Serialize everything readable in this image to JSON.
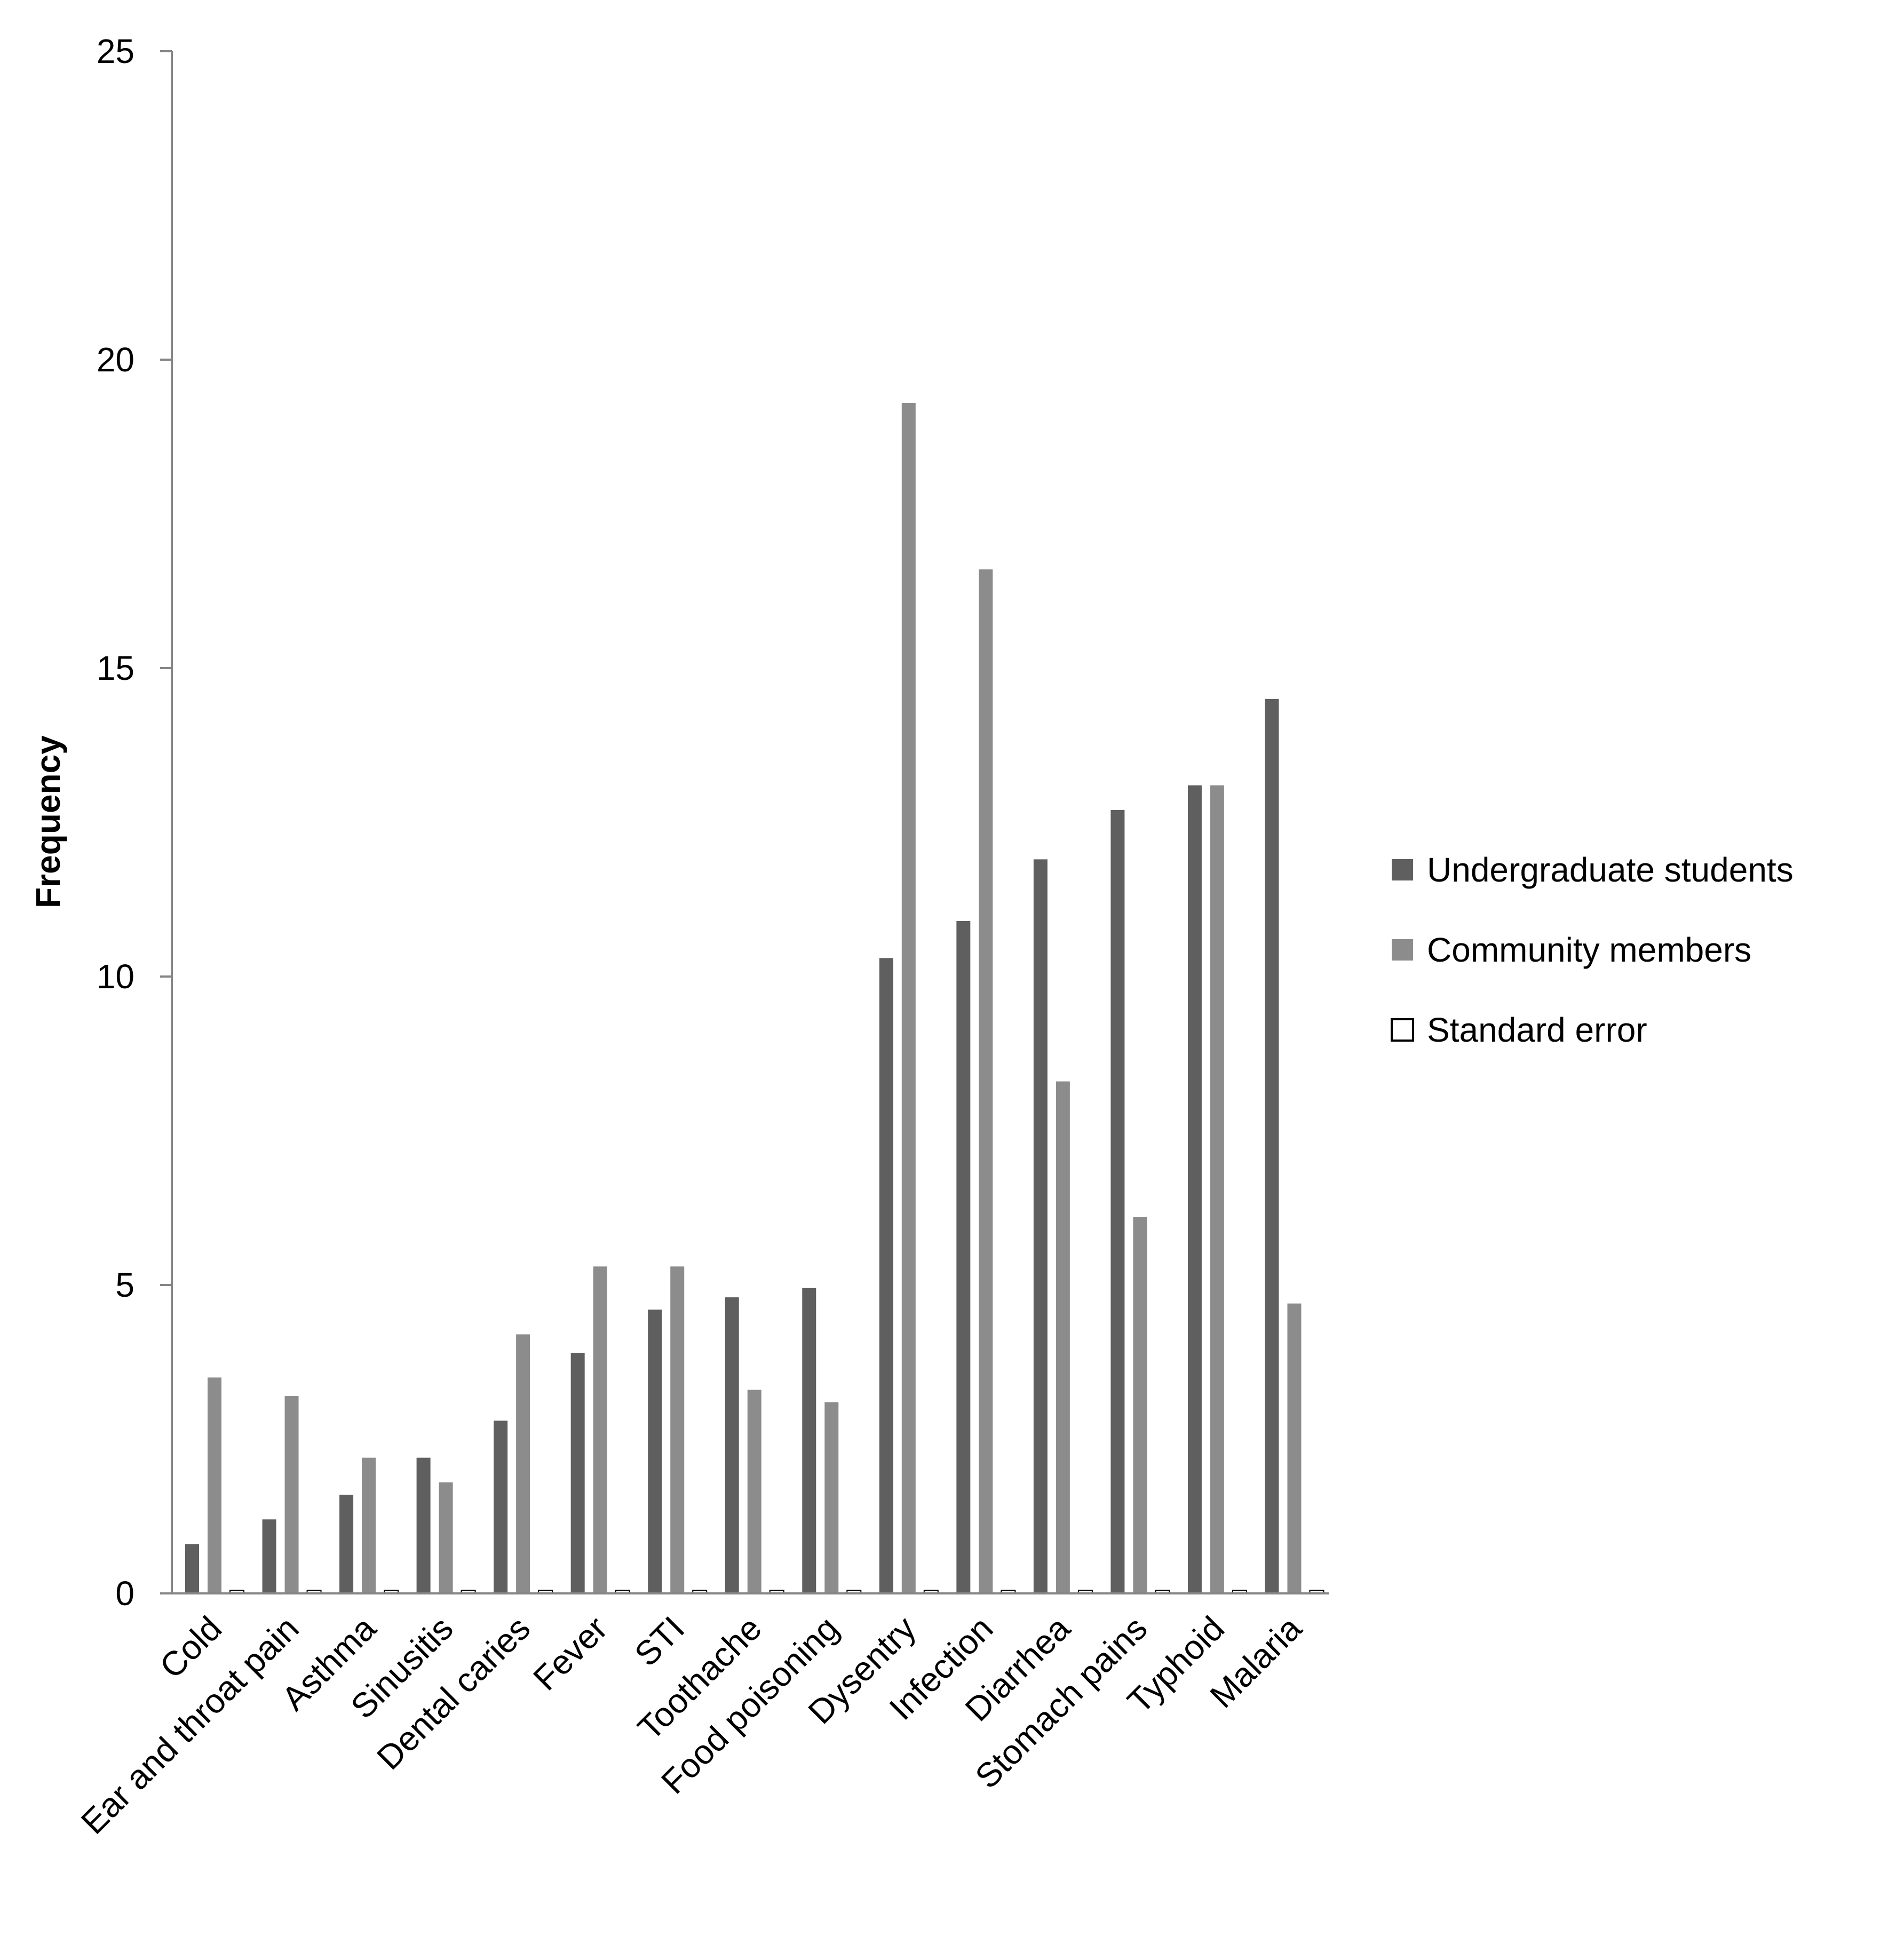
{
  "chart_data": {
    "type": "bar",
    "title": "",
    "xlabel": "",
    "ylabel": "Frequency",
    "ylim": [
      0,
      25
    ],
    "yticks": [
      0,
      5,
      10,
      15,
      20,
      25
    ],
    "grid": false,
    "legend_position": "right",
    "categories": [
      "Cold",
      "Ear and throat pain",
      "Asthma",
      "Sinusitis",
      "Dental caries",
      "Fever",
      "STI",
      "Toothache",
      "Food poisoning",
      "Dysentry",
      "Infection",
      "Diarrhea",
      "Stomach pains",
      "Typhoid",
      "Malaria"
    ],
    "series": [
      {
        "name": "Undergraduate students",
        "color": "#5f5f5f",
        "values": [
          0.8,
          1.2,
          1.6,
          2.2,
          2.8,
          3.9,
          4.6,
          4.8,
          4.95,
          10.3,
          10.9,
          11.9,
          12.7,
          13.1,
          14.5
        ]
      },
      {
        "name": "Community members",
        "color": "#8c8c8c",
        "values": [
          3.5,
          3.2,
          2.2,
          1.8,
          4.2,
          5.3,
          5.3,
          3.3,
          3.1,
          19.3,
          16.6,
          8.3,
          6.1,
          13.1,
          4.7
        ]
      },
      {
        "name": "Standard error",
        "color": "#ffffff",
        "values": [
          0.05,
          0.05,
          0.05,
          0.05,
          0.05,
          0.05,
          0.05,
          0.05,
          0.05,
          0.05,
          0.05,
          0.05,
          0.05,
          0.05,
          0.05
        ]
      }
    ]
  }
}
